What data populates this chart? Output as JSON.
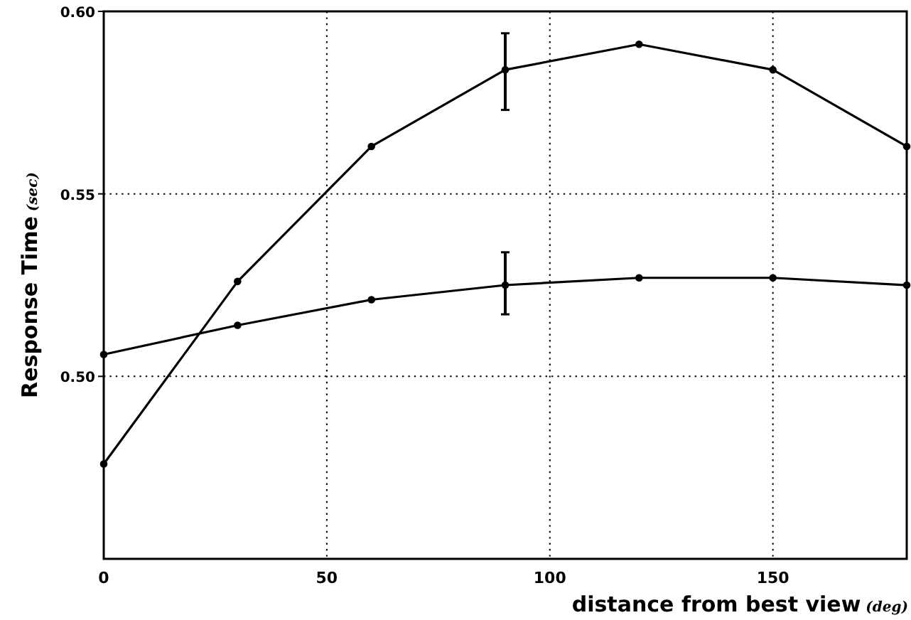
{
  "chart_data": {
    "type": "line",
    "xlabel": "distance from best view (deg)",
    "ylabel": "Response Time (sec)",
    "xlim": [
      0,
      180
    ],
    "xticks": [
      0,
      50,
      100,
      150
    ],
    "ylim": [
      0.45,
      0.6
    ],
    "yticks": [
      {
        "value": 0.5,
        "label": "0.50"
      },
      {
        "value": 0.55,
        "label": "0.55"
      },
      {
        "value": 0.6,
        "label": "0.60"
      }
    ],
    "grid": true,
    "marker": "circle",
    "line_style": "solid",
    "x": [
      0,
      30,
      60,
      90,
      120,
      150,
      180
    ],
    "series": [
      {
        "color": "#000000",
        "values": [
          0.476,
          0.526,
          0.563,
          0.584,
          0.591,
          0.584,
          0.563
        ],
        "errors": [
          null,
          null,
          null,
          [
            0.573,
            0.594
          ],
          null,
          null,
          null
        ]
      },
      {
        "color": "#000000",
        "values": [
          0.506,
          0.514,
          0.521,
          0.525,
          0.527,
          0.527,
          0.525
        ],
        "errors": [
          null,
          null,
          null,
          [
            0.517,
            0.534
          ],
          null,
          null,
          null
        ]
      }
    ]
  }
}
